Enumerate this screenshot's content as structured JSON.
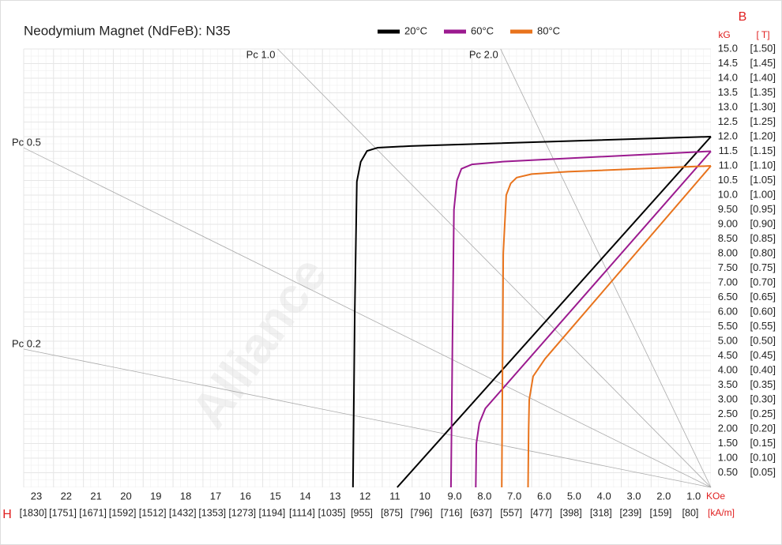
{
  "chart_data": {
    "type": "line",
    "title": "Neodymium Magnet (NdFeB):  N35",
    "watermark": "Alliance",
    "y_axis_label": "B",
    "y_unit": "kG",
    "y2_unit": "[ T]",
    "x_axis_label": "H",
    "x_unit": "KOe",
    "x2_unit": "[kA/m]",
    "xlim": [
      23,
      0
    ],
    "ylim": [
      0,
      15
    ],
    "x2lim": [
      1830,
      0
    ],
    "y2lim": [
      0,
      1.5
    ],
    "grid": true,
    "xticks": [
      23,
      22,
      21,
      20,
      19,
      18,
      17,
      16,
      15,
      14,
      13,
      12,
      11,
      10,
      {
        "value": 9,
        "label": "9.0"
      },
      {
        "value": 8,
        "label": "8.0"
      },
      {
        "value": 7,
        "label": "7.0"
      },
      {
        "value": 6,
        "label": "6.0"
      },
      {
        "value": 5,
        "label": "5.0"
      },
      {
        "value": 4,
        "label": "4.0"
      },
      {
        "value": 3,
        "label": "3.0"
      },
      {
        "value": 2,
        "label": "2.0"
      },
      {
        "value": 1,
        "label": "1.0"
      }
    ],
    "x2ticks": [
      {
        "value": 1830,
        "label": "[1830]"
      },
      {
        "value": 1751,
        "label": "[1751]"
      },
      {
        "value": 1671,
        "label": "[1671]"
      },
      {
        "value": 1592,
        "label": "[1592]"
      },
      {
        "value": 1512,
        "label": "[1512]"
      },
      {
        "value": 1432,
        "label": "[1432]"
      },
      {
        "value": 1353,
        "label": "[1353]"
      },
      {
        "value": 1273,
        "label": "[1273]"
      },
      {
        "value": 1194,
        "label": "[1194]"
      },
      {
        "value": 1114,
        "label": "[1114]"
      },
      {
        "value": 1035,
        "label": "[1035]"
      },
      {
        "value": 955,
        "label": "[955]"
      },
      {
        "value": 875,
        "label": "[875]"
      },
      {
        "value": 796,
        "label": "[796]"
      },
      {
        "value": 716,
        "label": "[716]"
      },
      {
        "value": 637,
        "label": "[637]"
      },
      {
        "value": 557,
        "label": "[557]"
      },
      {
        "value": 477,
        "label": "[477]"
      },
      {
        "value": 398,
        "label": "[398]"
      },
      {
        "value": 318,
        "label": "[318]"
      },
      {
        "value": 239,
        "label": "[239]"
      },
      {
        "value": 159,
        "label": "[159]"
      },
      {
        "value": 80,
        "label": "[80]"
      }
    ],
    "yticks": [
      {
        "value": 0.5,
        "label": "0.50"
      },
      {
        "value": 1,
        "label": "1.00"
      },
      {
        "value": 1.5,
        "label": "1.50"
      },
      {
        "value": 2,
        "label": "2.00"
      },
      {
        "value": 2.5,
        "label": "2.50"
      },
      {
        "value": 3,
        "label": "3.00"
      },
      {
        "value": 3.5,
        "label": "3.50"
      },
      {
        "value": 4,
        "label": "4.00"
      },
      {
        "value": 4.5,
        "label": "4.50"
      },
      {
        "value": 5,
        "label": "5.00"
      },
      {
        "value": 5.5,
        "label": "5.50"
      },
      {
        "value": 6,
        "label": "6.00"
      },
      {
        "value": 6.5,
        "label": "6.50"
      },
      {
        "value": 7,
        "label": "7.00"
      },
      {
        "value": 7.5,
        "label": "7.50"
      },
      {
        "value": 8,
        "label": "8.00"
      },
      {
        "value": 8.5,
        "label": "8.50"
      },
      {
        "value": 9,
        "label": "9.00"
      },
      {
        "value": 9.5,
        "label": "9.50"
      },
      {
        "value": 10,
        "label": "10.0"
      },
      {
        "value": 10.5,
        "label": "10.5"
      },
      {
        "value": 11,
        "label": "11.0"
      },
      {
        "value": 11.5,
        "label": "11.5"
      },
      {
        "value": 12,
        "label": "12.0"
      },
      {
        "value": 12.5,
        "label": "12.5"
      },
      {
        "value": 13,
        "label": "13.0"
      },
      {
        "value": 13.5,
        "label": "13.5"
      },
      {
        "value": 14,
        "label": "14.0"
      },
      {
        "value": 14.5,
        "label": "14.5"
      },
      {
        "value": 15,
        "label": "15.0"
      }
    ],
    "y2ticks": [
      {
        "value": 0.05,
        "label": "[0.05]"
      },
      {
        "value": 0.1,
        "label": "[0.10]"
      },
      {
        "value": 0.15,
        "label": "[0.15]"
      },
      {
        "value": 0.2,
        "label": "[0.20]"
      },
      {
        "value": 0.25,
        "label": "[0.25]"
      },
      {
        "value": 0.3,
        "label": "[0.30]"
      },
      {
        "value": 0.35,
        "label": "[0.35]"
      },
      {
        "value": 0.4,
        "label": "[0.40]"
      },
      {
        "value": 0.45,
        "label": "[0.45]"
      },
      {
        "value": 0.5,
        "label": "[0.50]"
      },
      {
        "value": 0.55,
        "label": "[0.55]"
      },
      {
        "value": 0.6,
        "label": "[0.60]"
      },
      {
        "value": 0.65,
        "label": "[0.65]"
      },
      {
        "value": 0.7,
        "label": "[0.70]"
      },
      {
        "value": 0.75,
        "label": "[0.75]"
      },
      {
        "value": 0.8,
        "label": "[0.80]"
      },
      {
        "value": 0.85,
        "label": "[0.85]"
      },
      {
        "value": 0.9,
        "label": "[0.90]"
      },
      {
        "value": 0.95,
        "label": "[0.95]"
      },
      {
        "value": 1,
        "label": "[1.00]"
      },
      {
        "value": 1.05,
        "label": "[1.05]"
      },
      {
        "value": 1.1,
        "label": "[1.10]"
      },
      {
        "value": 1.15,
        "label": "[1.15]"
      },
      {
        "value": 1.2,
        "label": "[1.20]"
      },
      {
        "value": 1.25,
        "label": "[1.25]"
      },
      {
        "value": 1.3,
        "label": "[1.30]"
      },
      {
        "value": 1.35,
        "label": "[1.35]"
      },
      {
        "value": 1.4,
        "label": "[1.40]"
      },
      {
        "value": 1.45,
        "label": "[1.45]"
      },
      {
        "value": 1.5,
        "label": "[1.50]"
      }
    ],
    "reference_lines": [
      {
        "label": "Pc 1.0",
        "x": 14.5,
        "y": 15
      },
      {
        "label": "Pc 2.0",
        "x": 7.04,
        "y": 15
      },
      {
        "label": "Pc 0.5",
        "x": 23,
        "y": 11.62
      },
      {
        "label": "Pc 0.2",
        "x": 23,
        "y": 4.73
      }
    ],
    "series": [
      {
        "name": "20°C",
        "color": "#000000",
        "x": [
          0,
          10.5
        ],
        "values": [
          12.0,
          0
        ],
        "intrinsic_x": [
          11.98,
          11.92,
          11.85,
          11.72,
          11.51,
          11.16,
          10.05,
          0
        ],
        "intrinsic_values": [
          0,
          6,
          10.46,
          11.14,
          11.51,
          11.62,
          11.68,
          12.0
        ]
      },
      {
        "name": "60°C",
        "color": "#9b1a8f",
        "x": [
          0,
          7.55,
          7.75,
          7.85,
          7.87
        ],
        "values": [
          11.5,
          2.7,
          2.2,
          1.5,
          0
        ],
        "intrinsic_x": [
          8.7,
          8.65,
          8.6,
          8.5,
          8.35,
          8.0,
          6.9,
          0
        ],
        "intrinsic_values": [
          0,
          5,
          9.5,
          10.5,
          10.9,
          11.05,
          11.15,
          11.5
        ]
      },
      {
        "name": "80°C",
        "color": "#e8731c",
        "x": [
          0,
          5.55,
          5.95,
          6.08,
          6.1,
          6.12
        ],
        "values": [
          11.0,
          4.4,
          3.8,
          3.0,
          2.0,
          0
        ],
        "intrinsic_x": [
          7.0,
          6.95,
          6.85,
          6.7,
          6.5,
          6.0,
          4.8,
          0
        ],
        "intrinsic_values": [
          0,
          8,
          10,
          10.4,
          10.6,
          10.72,
          10.8,
          11.0
        ]
      }
    ]
  }
}
